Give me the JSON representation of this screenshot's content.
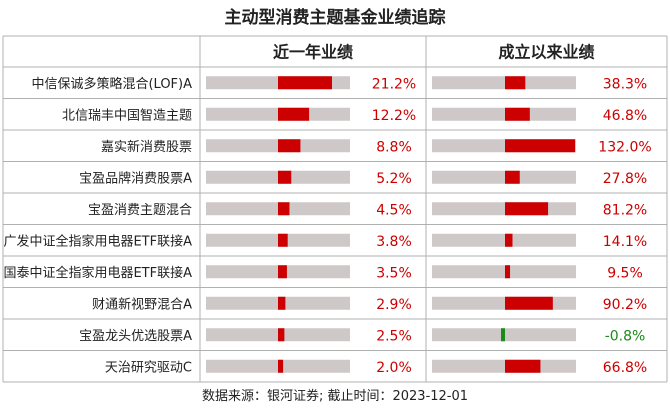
{
  "chart_data": {
    "type": "table",
    "title": "主动型消费主题基金业绩追踪",
    "columns": [
      "近一年业绩",
      "成立以来业绩"
    ],
    "rows": [
      {
        "name": "中信保诚多策略混合(LOF)A",
        "one_year": 21.2,
        "since_inception": 38.3
      },
      {
        "name": "北信瑞丰中国智造主题",
        "one_year": 12.2,
        "since_inception": 46.8
      },
      {
        "name": "嘉实新消费股票",
        "one_year": 8.8,
        "since_inception": 132.0
      },
      {
        "name": "宝盈品牌消费股票A",
        "one_year": 5.2,
        "since_inception": 27.8
      },
      {
        "name": "宝盈消费主题混合",
        "one_year": 4.5,
        "since_inception": 81.2
      },
      {
        "name": "广发中证全指家用电器ETF联接A",
        "one_year": 3.8,
        "since_inception": 14.1
      },
      {
        "name": "国泰中证全指家用电器ETF联接A",
        "one_year": 3.5,
        "since_inception": 9.5
      },
      {
        "name": "财通新视野混合A",
        "one_year": 2.9,
        "since_inception": 90.2
      },
      {
        "name": "宝盈龙头优选股票A",
        "one_year": 2.5,
        "since_inception": -0.8
      },
      {
        "name": "天治研究驱动C",
        "one_year": 2.0,
        "since_inception": 66.8
      }
    ],
    "one_year_max": 21.2,
    "since_inception_max": 132.0,
    "colors": {
      "positive": "#cc0000",
      "negative": "#1a8a1a",
      "track": "#cfc8c8",
      "grid": "#b0b0b0"
    }
  },
  "footer": "数据来源：银河证券; 截止时间：2023-12-01"
}
